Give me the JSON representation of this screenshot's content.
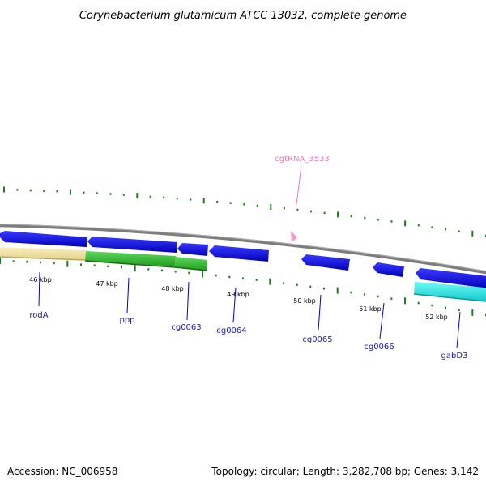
{
  "title": "Corynebacterium glutamicum ATCC 13032, complete genome",
  "accession": "Accession: NC_006958",
  "topology": "Topology: circular; Length: 3,282,708 bp; Genes: 3,142",
  "ruler_labels": [
    "46 kbp",
    "47 kbp",
    "48 kbp",
    "49 kbp",
    "50 kbp",
    "51 kbp",
    "52 kbp"
  ],
  "gene_labels": [
    "rodA",
    "ppp",
    "cg0063",
    "cg0064",
    "cg0065",
    "cg0066",
    "gabD3"
  ],
  "rna_label": "cgtRNA_3533",
  "colors": {
    "backbone": "#888888",
    "gene_arrow": "#0000ee",
    "gene_label": "#1a1aa6",
    "rna": "#e87fb6",
    "tick": "#1e7d1e",
    "cog_tan": "#f5e6a6",
    "cog_green": "#3cc23c",
    "cog_cyan": "#22f0f0"
  }
}
